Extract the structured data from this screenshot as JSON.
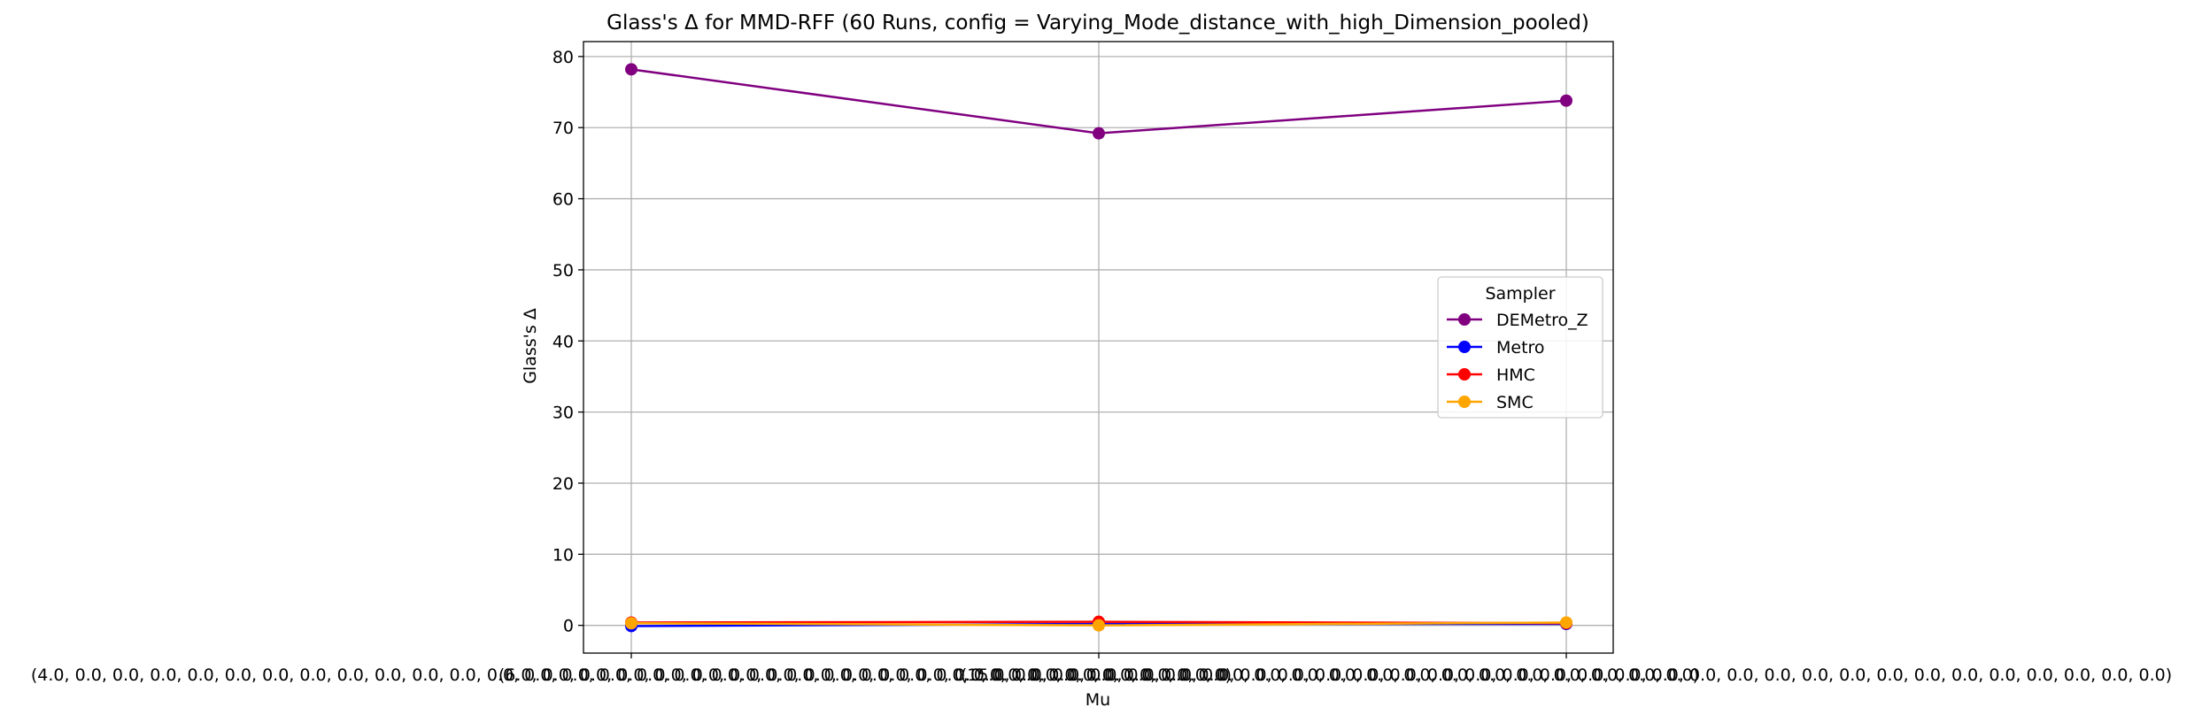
{
  "chart_data": {
    "type": "line",
    "title": "Glass's Δ for MMD-RFF (60 Runs, config = Varying_Mode_distance_with_high_Dimension_pooled)",
    "xlabel": "Mu",
    "ylabel": "Glass's Δ",
    "categories": [
      "(4.0, 0.0, 0.0, 0.0, 0.0, 0.0, 0.0, 0.0, 0.0, 0.0, 0.0, 0.0, 0.0, 0.0, 0.0, 0.0, 0.0, 0.0, 0.0, 0.0, 0.0, 0.0, 0.0, 0.0, 0.0, 0.0, 0.0, 0.0, 0.0, 0.0, 0.0, 0.0)",
      "(6.0, 0.0, 0.0, 0.0, 0.0, 0.0, 0.0, 0.0, 0.0, 0.0, 0.0, 0.0, 0.0, 0.0, 0.0, 0.0, 0.0, 0.0, 0.0, 0.0, 0.0, 0.0, 0.0, 0.0, 0.0, 0.0, 0.0, 0.0, 0.0, 0.0, 0.0, 0.0)",
      "(15.0, 0.0, 0.0, 0.0, 0.0, 0.0, 0.0, 0.0, 0.0, 0.0, 0.0, 0.0, 0.0, 0.0, 0.0, 0.0, 0.0, 0.0, 0.0, 0.0, 0.0, 0.0, 0.0, 0.0, 0.0, 0.0, 0.0, 0.0, 0.0, 0.0, 0.0, 0.0)"
    ],
    "series": [
      {
        "name": "DEMetro_Z",
        "color": "#800080",
        "values": [
          78.2,
          69.2,
          73.8
        ]
      },
      {
        "name": "Metro",
        "color": "#0000ff",
        "values": [
          -0.1,
          0.2,
          0.2
        ]
      },
      {
        "name": "HMC",
        "color": "#ff0000",
        "values": [
          0.4,
          0.5,
          0.3
        ]
      },
      {
        "name": "SMC",
        "color": "#ffa500",
        "values": [
          0.3,
          0.0,
          0.4
        ]
      }
    ],
    "yticks": [
      0,
      10,
      20,
      30,
      40,
      50,
      60,
      70,
      80
    ],
    "ylim": [
      -3.9,
      82.1
    ],
    "grid": true,
    "legend": {
      "title": "Sampler",
      "placement": "center-right"
    }
  }
}
